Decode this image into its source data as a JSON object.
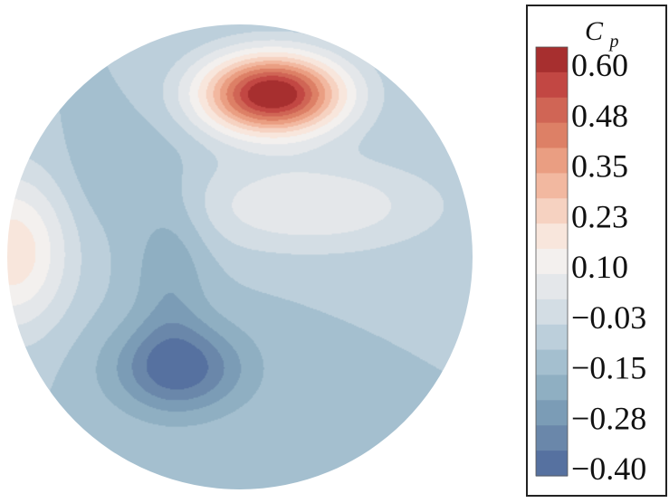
{
  "chart_data": {
    "type": "heatmap",
    "title": "",
    "colorbar": {
      "title_main": "C",
      "title_sub": "p",
      "tick_labels": [
        "0.60",
        "0.48",
        "0.35",
        "0.23",
        "0.10",
        "−0.03",
        "−0.15",
        "−0.28",
        "−0.40"
      ],
      "levels": [
        {
          "value": 0.6,
          "color": "#a72f2f"
        },
        {
          "value": 0.54,
          "color": "#c24743"
        },
        {
          "value": 0.48,
          "color": "#d06555"
        },
        {
          "value": 0.42,
          "color": "#dd8066"
        },
        {
          "value": 0.35,
          "color": "#ea9e82"
        },
        {
          "value": 0.29,
          "color": "#f2b8a0"
        },
        {
          "value": 0.23,
          "color": "#f6d2c1"
        },
        {
          "value": 0.16,
          "color": "#f8e6dc"
        },
        {
          "value": 0.1,
          "color": "#f3f0ee"
        },
        {
          "value": 0.03,
          "color": "#e4e7ea"
        },
        {
          "value": -0.03,
          "color": "#d3dde4"
        },
        {
          "value": -0.09,
          "color": "#bccfdb"
        },
        {
          "value": -0.15,
          "color": "#a4bfcf"
        },
        {
          "value": -0.22,
          "color": "#8fafc2"
        },
        {
          "value": -0.28,
          "color": "#7b9cb6"
        },
        {
          "value": -0.34,
          "color": "#6a87aa"
        },
        {
          "value": -0.4,
          "color": "#5671a0"
        }
      ]
    },
    "field": {
      "background_level": -0.12,
      "features": [
        {
          "name": "stagnation-high",
          "cx": 0.14,
          "cy": 0.7,
          "amp": 0.78,
          "sx": 0.3,
          "sy": 0.17
        },
        {
          "name": "left-high",
          "cx": -0.98,
          "cy": 0.02,
          "amp": 0.3,
          "sx": 0.24,
          "sy": 0.33
        },
        {
          "name": "upper-band-high",
          "cx": 0.3,
          "cy": 0.22,
          "amp": 0.18,
          "sx": 0.55,
          "sy": 0.2
        },
        {
          "name": "lower-low",
          "cx": -0.26,
          "cy": -0.48,
          "amp": -0.28,
          "sx": 0.3,
          "sy": 0.2
        },
        {
          "name": "diagonal-low",
          "cx": -0.3,
          "cy": -0.05,
          "amp": -0.12,
          "sx": 0.16,
          "sy": 0.4
        },
        {
          "name": "left-mid-low",
          "cx": -0.55,
          "cy": 0.35,
          "amp": -0.06,
          "sx": 0.2,
          "sy": 0.25
        }
      ]
    }
  }
}
